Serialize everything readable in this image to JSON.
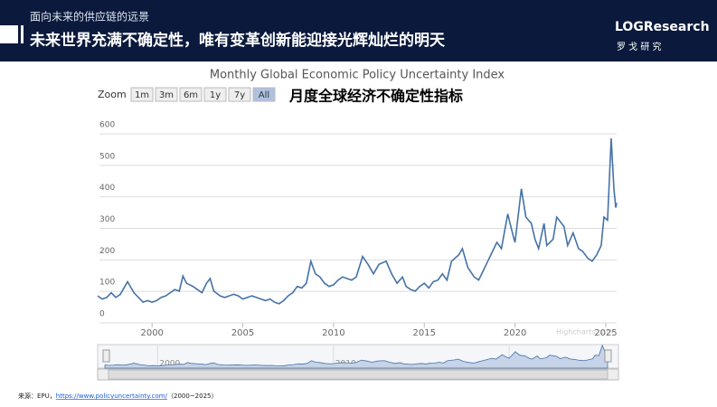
{
  "header": {
    "subtitle": "面向未来的供应链的远景",
    "title": "未来世界充满不确定性，唯有变革创新能迎接光辉灿烂的明天",
    "logo": "LOGResearch",
    "logo_sub": "罗 戈 研 究"
  },
  "chart_data": {
    "type": "line",
    "title": "Monthly Global Economic Policy Uncertainty Index",
    "zoom_label": "Zoom",
    "zoom_buttons": [
      "1m",
      "3m",
      "6m",
      "1y",
      "7y",
      "All"
    ],
    "annotation": "月度全球经济不确定性指标",
    "credit": "Highcharts.com",
    "x": [
      1997.0,
      1997.25,
      1997.5,
      1997.75,
      1998.0,
      1998.25,
      1998.5,
      1998.65,
      1999.0,
      1999.25,
      1999.5,
      1999.75,
      2000.0,
      2000.25,
      2000.5,
      2000.75,
      2001.0,
      2001.25,
      2001.5,
      2001.7,
      2001.9,
      2002.25,
      2002.5,
      2002.75,
      2003.0,
      2003.2,
      2003.4,
      2003.75,
      2004.0,
      2004.25,
      2004.5,
      2004.75,
      2005.0,
      2005.25,
      2005.5,
      2005.75,
      2006.0,
      2006.25,
      2006.5,
      2006.75,
      2007.0,
      2007.25,
      2007.5,
      2007.75,
      2008.0,
      2008.25,
      2008.5,
      2008.75,
      2009.0,
      2009.25,
      2009.5,
      2009.75,
      2010.0,
      2010.25,
      2010.5,
      2010.75,
      2011.0,
      2011.25,
      2011.6,
      2011.9,
      2012.2,
      2012.5,
      2012.9,
      2013.2,
      2013.5,
      2013.8,
      2014.0,
      2014.25,
      2014.5,
      2014.75,
      2015.0,
      2015.25,
      2015.5,
      2015.75,
      2016.0,
      2016.25,
      2016.5,
      2016.9,
      2017.1,
      2017.4,
      2017.75,
      2018.0,
      2018.25,
      2018.5,
      2018.75,
      2019.0,
      2019.25,
      2019.6,
      2019.9,
      2020.0,
      2020.35,
      2020.6,
      2020.9,
      2021.1,
      2021.3,
      2021.6,
      2021.75,
      2022.1,
      2022.3,
      2022.7,
      2022.9,
      2023.2,
      2023.5,
      2023.75,
      2024.0,
      2024.25,
      2024.5,
      2024.75,
      2024.9,
      2025.1,
      2025.3,
      2025.45,
      2025.55,
      2025.6
    ],
    "series": [
      {
        "name": "EPU",
        "color": "#4572a7",
        "values": [
          80,
          70,
          75,
          90,
          75,
          85,
          110,
          125,
          90,
          75,
          60,
          65,
          60,
          65,
          75,
          80,
          90,
          100,
          95,
          143,
          120,
          110,
          100,
          90,
          120,
          135,
          95,
          80,
          75,
          80,
          85,
          80,
          70,
          75,
          80,
          75,
          70,
          65,
          70,
          60,
          55,
          65,
          80,
          90,
          110,
          105,
          120,
          190,
          150,
          140,
          120,
          110,
          115,
          130,
          140,
          135,
          130,
          140,
          205,
          180,
          150,
          180,
          190,
          150,
          120,
          140,
          110,
          100,
          95,
          110,
          120,
          105,
          125,
          130,
          150,
          130,
          190,
          210,
          230,
          170,
          140,
          130,
          160,
          190,
          220,
          250,
          230,
          340,
          270,
          250,
          420,
          330,
          310,
          260,
          230,
          310,
          240,
          260,
          330,
          300,
          240,
          280,
          230,
          220,
          200,
          190,
          210,
          240,
          330,
          320,
          580,
          420,
          360,
          375
        ]
      }
    ],
    "xlim": [
      1997.1,
      2025.6
    ],
    "xticks": [
      2000,
      2005,
      2010,
      2015,
      2020,
      2025
    ],
    "ylim": [
      0,
      600
    ],
    "yticks": [
      0,
      100,
      200,
      300,
      400,
      500,
      600
    ],
    "grid": true,
    "navigator_xticks": [
      2000,
      2010,
      2020
    ]
  },
  "footer": {
    "prefix": "来源：EPU，",
    "link": "https://www.policyuncertainty.com/",
    "suffix": "（2000~2025）"
  }
}
